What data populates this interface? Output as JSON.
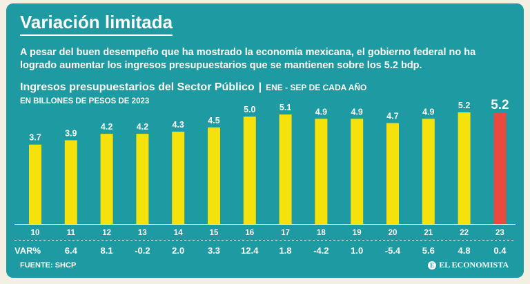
{
  "header": {
    "title": "Variación limitada",
    "intro": "A pesar del buen desempeño que ha mostrado la economía mexicana, el gobierno federal no ha logrado aumentar los ingresos presupuestarios que se mantienen sobre los 5.2 bdp."
  },
  "footer": {
    "source": "FUENTE: SHCP",
    "brand": "EL ECONOMISTA",
    "brand_mark": "E"
  },
  "colors": {
    "background": "#1e9aa3",
    "bar": "#f5e20c",
    "highlight": "#e84a3e",
    "text": "#ffffff"
  },
  "chart_data": {
    "type": "bar",
    "title": "Ingresos presupuestarios del Sector Público",
    "period": "ENE - SEP DE CADA AÑO",
    "separator": "|",
    "ylabel": "EN BILLONES DE PESOS DE 2023",
    "xlabel": "",
    "categories": [
      "10",
      "11",
      "12",
      "13",
      "14",
      "15",
      "16",
      "17",
      "18",
      "19",
      "20",
      "21",
      "22",
      "23"
    ],
    "values": [
      3.7,
      3.9,
      4.2,
      4.2,
      4.3,
      4.5,
      5.0,
      5.1,
      4.9,
      4.9,
      4.7,
      4.9,
      5.2,
      5.2
    ],
    "value_labels": [
      "3.7",
      "3.9",
      "4.2",
      "4.2",
      "4.3",
      "4.5",
      "5.0",
      "5.1",
      "4.9",
      "4.9",
      "4.7",
      "4.9",
      "5.2",
      "5.2"
    ],
    "highlight_index": 13,
    "ylim": [
      0,
      5.2
    ],
    "grid": false,
    "var_label": "VAR%",
    "var_values": [
      "6.4",
      "8.1",
      "-0.2",
      "2.0",
      "3.3",
      "12.4",
      "1.8",
      "-4.2",
      "1.0",
      "-5.4",
      "5.6",
      "4.8",
      "0.4"
    ]
  }
}
